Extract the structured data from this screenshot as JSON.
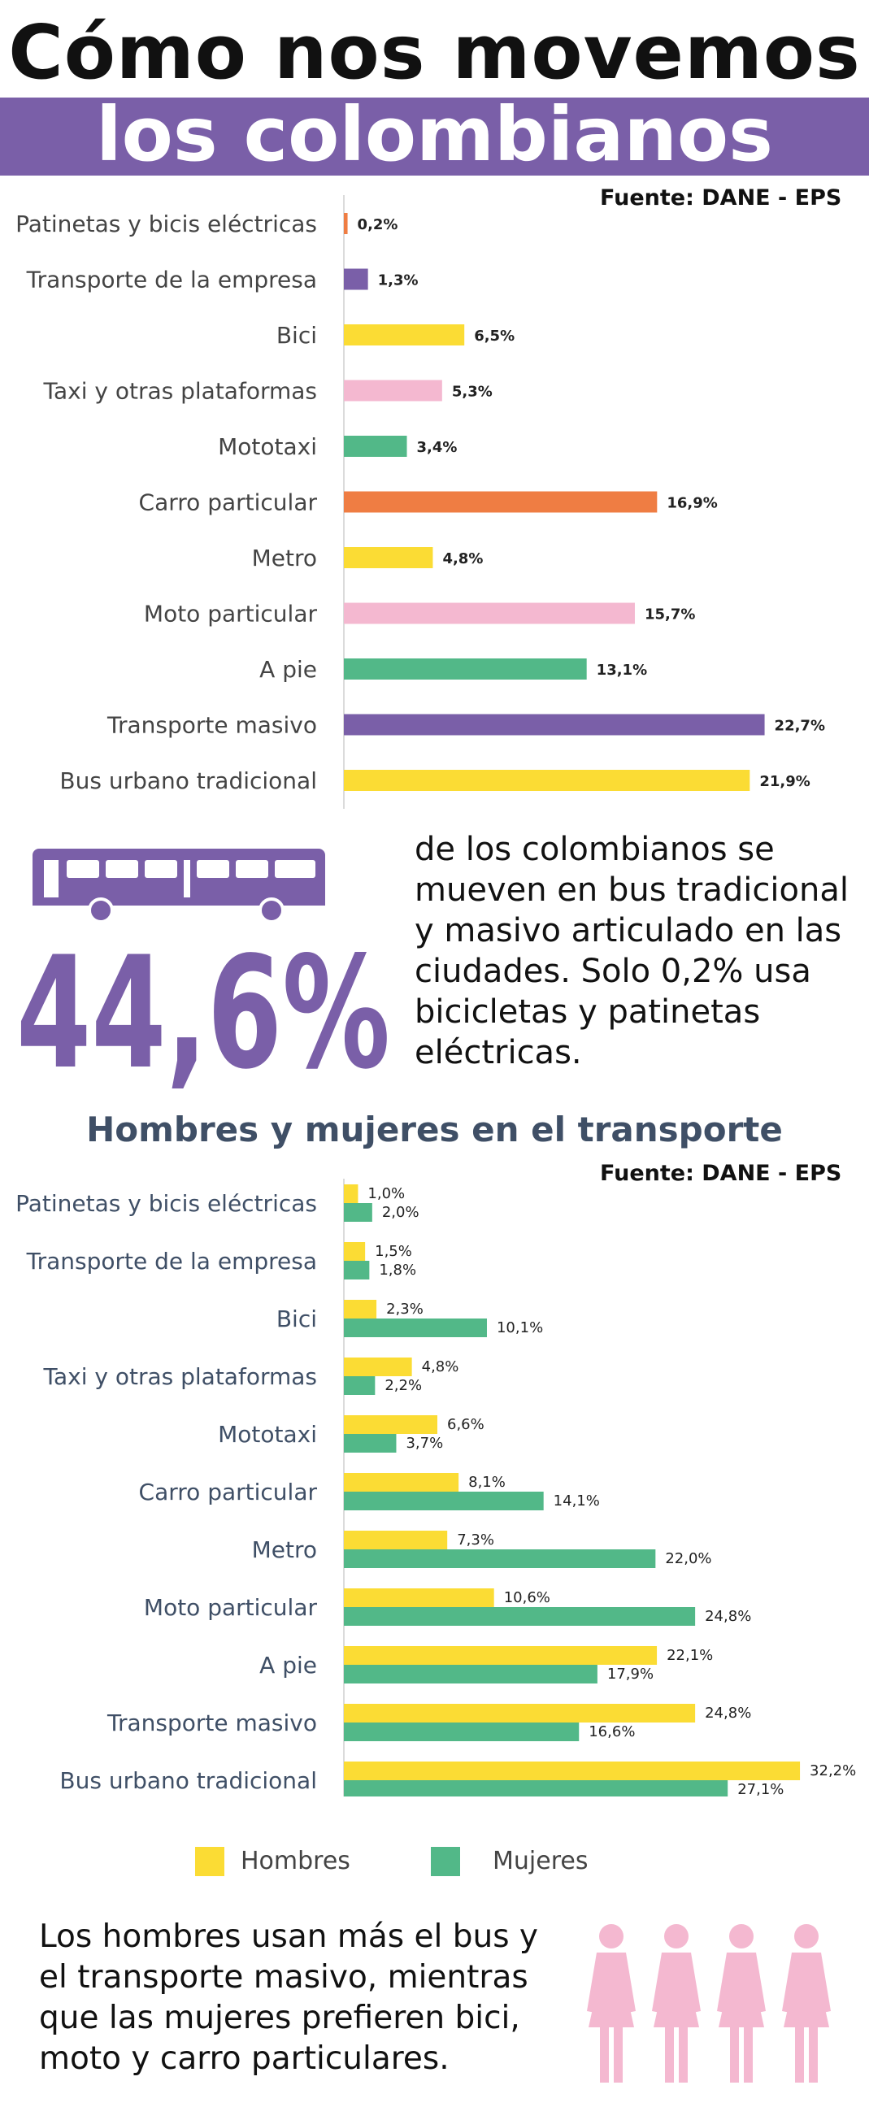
{
  "title": {
    "line1": "Cómo nos movemos",
    "line2": "los colombianos"
  },
  "colors": {
    "purple": "#7a5fa8",
    "orange": "#ef7d43",
    "yellow": "#fbdc34",
    "pink": "#f4b8d0",
    "green": "#52b888",
    "hombres": "#fbdc34",
    "mujeres": "#52b888"
  },
  "chart1_source": "Fuente: DANE - EPS",
  "chart2_source": "Fuente: DANE - EPS",
  "highlight": {
    "value": "44,6%",
    "icon": "bus-icon",
    "text": "de los colombianos se mueven en bus tradicional y masivo articulado en las ciudades. Solo 0,2% usa bicicletas y patinetas eléctricas."
  },
  "section2_title": "Hombres y mujeres en el transporte",
  "legend": [
    {
      "name": "Hombres",
      "color": "#fbdc34"
    },
    {
      "name": "Mujeres",
      "color": "#52b888"
    }
  ],
  "conclusion": {
    "text": "Los hombres usan más el bus y el transporte masivo, mientras que las mujeres prefieren bici, moto y carro particulares.",
    "icon": "women-figures-icon"
  },
  "chart_data": [
    {
      "type": "bar",
      "orientation": "horizontal",
      "title": "",
      "categories": [
        "Patinetas y bicis eléctricas",
        "Transporte de la empresa",
        "Bici",
        "Taxi y otras plataformas",
        "Mototaxi",
        "Carro particular",
        "Metro",
        "Moto particular",
        "A pie",
        "Transporte masivo",
        "Bus urbano tradicional"
      ],
      "values": [
        0.2,
        1.3,
        6.5,
        5.3,
        3.4,
        16.9,
        4.8,
        15.7,
        13.1,
        22.7,
        21.9
      ],
      "value_labels": [
        "0,2%",
        "1,3%",
        "6,5%",
        "5,3%",
        "3,4%",
        "16,9%",
        "4,8%",
        "15,7%",
        "13,1%",
        "22,7%",
        "21,9%"
      ],
      "bar_colors": [
        "#ef7d43",
        "#7a5fa8",
        "#fbdc34",
        "#f4b8d0",
        "#52b888",
        "#ef7d43",
        "#fbdc34",
        "#f4b8d0",
        "#52b888",
        "#7a5fa8",
        "#fbdc34"
      ],
      "xlim": [
        0,
        25
      ],
      "grid": false,
      "source": "Fuente: DANE - EPS"
    },
    {
      "type": "bar",
      "orientation": "horizontal",
      "title": "Hombres y mujeres en el transporte",
      "categories": [
        "Patinetas y bicis eléctricas",
        "Transporte de la empresa",
        "Bici",
        "Taxi y otras plataformas",
        "Mototaxi",
        "Carro particular",
        "Metro",
        "Moto particular",
        "A pie",
        "Transporte masivo",
        "Bus urbano tradicional"
      ],
      "series": [
        {
          "name": "Hombres",
          "color": "#fbdc34",
          "values": [
            1.0,
            1.5,
            2.3,
            4.8,
            6.6,
            8.1,
            7.3,
            10.6,
            22.1,
            24.8,
            32.2
          ],
          "value_labels": [
            "1,0%",
            "1,5%",
            "2,3%",
            "4,8%",
            "6,6%",
            "8,1%",
            "7,3%",
            "10,6%",
            "22,1%",
            "24,8%",
            "32,2%"
          ]
        },
        {
          "name": "Mujeres",
          "color": "#52b888",
          "values": [
            2.0,
            1.8,
            10.1,
            2.2,
            3.7,
            14.1,
            22.0,
            24.8,
            17.9,
            16.6,
            27.1
          ],
          "value_labels": [
            "2,0%",
            "1,8%",
            "10,1%",
            "2,2%",
            "3,7%",
            "14,1%",
            "22,0%",
            "24,8%",
            "17,9%",
            "16,6%",
            "27,1%"
          ]
        }
      ],
      "xlim": [
        0,
        33
      ],
      "legend_position": "bottom",
      "grid": false,
      "source": "Fuente: DANE - EPS"
    }
  ]
}
